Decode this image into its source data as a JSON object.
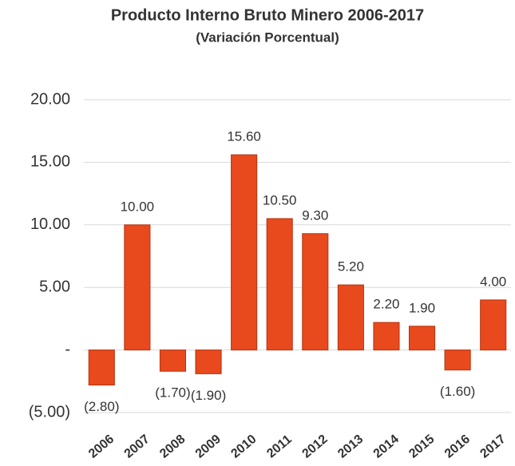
{
  "chart_data": {
    "type": "bar",
    "title": "Producto Interno Bruto Minero 2006-2017",
    "subtitle": "(Variación Porcentual)",
    "categories": [
      "2006",
      "2007",
      "2008",
      "2009",
      "2010",
      "2011",
      "2012",
      "2013",
      "2014",
      "2015",
      "2016",
      "2017"
    ],
    "values": [
      -2.8,
      10,
      -1.7,
      -1.9,
      15.6,
      10.5,
      9.3,
      5.2,
      2.2,
      1.9,
      -1.6,
      4
    ],
    "value_labels": [
      "(2.80)",
      "10.00",
      "(1.70)",
      "(1.90)",
      "15.60",
      "10.50",
      "9.30",
      "5.20",
      "2.20",
      "1.90",
      "(1.60)",
      "4.00"
    ],
    "color": "#e8491d",
    "ylim": [
      -5,
      20
    ],
    "yticks": [
      {
        "value": -5,
        "label": "(5.00)"
      },
      {
        "value": 0,
        "label": "-"
      },
      {
        "value": 5,
        "label": "5.00"
      },
      {
        "value": 10,
        "label": "10.00"
      },
      {
        "value": 15,
        "label": "15.00"
      },
      {
        "value": 20,
        "label": "20.00"
      }
    ],
    "grid": true
  }
}
